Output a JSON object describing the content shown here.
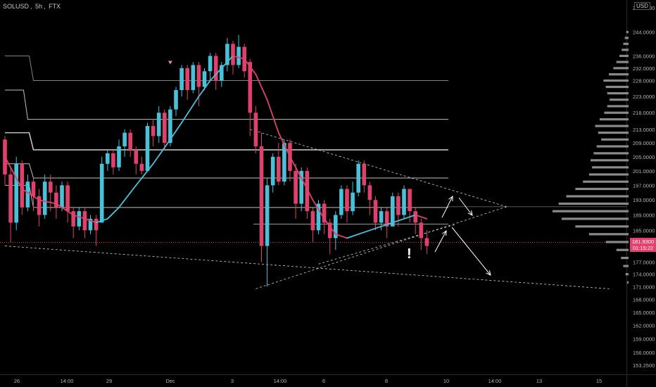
{
  "header": {
    "symbol": "SOLUSD",
    "interval": "5h",
    "exchange": "FTX",
    "separator": ", "
  },
  "currency_label": "USD",
  "last_price": {
    "value": "181.9300",
    "countdown": "01:15:22"
  },
  "warning_glyph": "!",
  "colors": {
    "background": "#000000",
    "up": "#49c1d8",
    "down": "#e0406e",
    "ma_up": "#49c1d8",
    "ma_down": "#e0406e",
    "levels": "#e0e0e0",
    "volume_profile": "#8a8a8a",
    "annotations": "#ffffff"
  },
  "chart_data": {
    "type": "bar",
    "symbol": "SOLUSD",
    "interval": "5h",
    "exchange": "FTX",
    "y_axis": {
      "scale": "log",
      "ticks": [
        "153.2500",
        "156.0000",
        "159.0000",
        "162.0000",
        "165.0000",
        "168.0000",
        "171.0000",
        "174.0000",
        "177.0000",
        "181.0000",
        "185.0000",
        "189.0000",
        "193.0000",
        "197.0000",
        "201.0000",
        "205.0000",
        "209.0000",
        "213.0000",
        "218.0000",
        "223.0000",
        "228.0000",
        "232.0000",
        "236.0000",
        "244.0000"
      ],
      "top_partial": "252.0000"
    },
    "x_axis": {
      "ticks": [
        "26",
        "14:00",
        "29",
        "Dec",
        "3",
        "14:00",
        "6",
        "8",
        "10",
        "14:00",
        "13",
        "15"
      ]
    },
    "last_price": 181.93,
    "candles": [
      {
        "o": 210,
        "c": 200,
        "l": 197,
        "h": 211
      },
      {
        "o": 200,
        "c": 187,
        "l": 182,
        "h": 202
      },
      {
        "o": 187,
        "c": 203,
        "l": 185,
        "h": 205
      },
      {
        "o": 203,
        "c": 191,
        "l": 189,
        "h": 204
      },
      {
        "o": 191,
        "c": 198,
        "l": 190,
        "h": 200
      },
      {
        "o": 198,
        "c": 194,
        "l": 190,
        "h": 199
      },
      {
        "o": 194,
        "c": 189,
        "l": 186,
        "h": 196
      },
      {
        "o": 189,
        "c": 198,
        "l": 188,
        "h": 200
      },
      {
        "o": 198,
        "c": 195,
        "l": 190,
        "h": 200
      },
      {
        "o": 195,
        "c": 191,
        "l": 188,
        "h": 197
      },
      {
        "o": 191,
        "c": 197,
        "l": 190,
        "h": 198
      },
      {
        "o": 197,
        "c": 190,
        "l": 187,
        "h": 198
      },
      {
        "o": 190,
        "c": 186,
        "l": 183,
        "h": 191
      },
      {
        "o": 186,
        "c": 190,
        "l": 185,
        "h": 191
      },
      {
        "o": 190,
        "c": 185,
        "l": 183,
        "h": 191
      },
      {
        "o": 185,
        "c": 188,
        "l": 184,
        "h": 189
      },
      {
        "o": 188,
        "c": 185,
        "l": 181,
        "h": 189
      },
      {
        "o": 187,
        "c": 203,
        "l": 187,
        "h": 205
      },
      {
        "o": 203,
        "c": 206,
        "l": 201,
        "h": 207
      },
      {
        "o": 206,
        "c": 202,
        "l": 200,
        "h": 207
      },
      {
        "o": 202,
        "c": 208,
        "l": 201,
        "h": 210
      },
      {
        "o": 208,
        "c": 212,
        "l": 205,
        "h": 213
      },
      {
        "o": 212,
        "c": 207,
        "l": 205,
        "h": 213
      },
      {
        "o": 207,
        "c": 203,
        "l": 200,
        "h": 208
      },
      {
        "o": 203,
        "c": 201,
        "l": 200,
        "h": 205
      },
      {
        "o": 201,
        "c": 214,
        "l": 201,
        "h": 215
      },
      {
        "o": 214,
        "c": 211,
        "l": 208,
        "h": 216
      },
      {
        "o": 211,
        "c": 218,
        "l": 209,
        "h": 220
      },
      {
        "o": 218,
        "c": 209,
        "l": 207,
        "h": 219
      },
      {
        "o": 209,
        "c": 219,
        "l": 208,
        "h": 220
      },
      {
        "o": 219,
        "c": 225,
        "l": 217,
        "h": 226
      },
      {
        "o": 225,
        "c": 232,
        "l": 223,
        "h": 233
      },
      {
        "o": 232,
        "c": 225,
        "l": 222,
        "h": 233
      },
      {
        "o": 225,
        "c": 233,
        "l": 224,
        "h": 234
      },
      {
        "o": 233,
        "c": 226,
        "l": 220,
        "h": 234
      },
      {
        "o": 226,
        "c": 231,
        "l": 225,
        "h": 232
      },
      {
        "o": 231,
        "c": 236,
        "l": 228,
        "h": 237
      },
      {
        "o": 236,
        "c": 228,
        "l": 225,
        "h": 237
      },
      {
        "o": 228,
        "c": 233,
        "l": 226,
        "h": 234
      },
      {
        "o": 233,
        "c": 240,
        "l": 231,
        "h": 242
      },
      {
        "o": 240,
        "c": 233,
        "l": 230,
        "h": 241
      },
      {
        "o": 233,
        "c": 239,
        "l": 232,
        "h": 243
      },
      {
        "o": 239,
        "c": 231,
        "l": 229,
        "h": 240
      },
      {
        "o": 234,
        "c": 218,
        "l": 211,
        "h": 235
      },
      {
        "o": 218,
        "c": 208,
        "l": 206,
        "h": 220
      },
      {
        "o": 208,
        "c": 181,
        "l": 177,
        "h": 212
      },
      {
        "o": 181,
        "c": 197,
        "l": 171,
        "h": 199
      },
      {
        "o": 197,
        "c": 205,
        "l": 195,
        "h": 206
      },
      {
        "o": 205,
        "c": 198,
        "l": 197,
        "h": 209
      },
      {
        "o": 198,
        "c": 209,
        "l": 197,
        "h": 210
      },
      {
        "o": 209,
        "c": 201,
        "l": 198,
        "h": 210
      },
      {
        "o": 201,
        "c": 192,
        "l": 188,
        "h": 203
      },
      {
        "o": 192,
        "c": 201,
        "l": 190,
        "h": 202
      },
      {
        "o": 201,
        "c": 190,
        "l": 188,
        "h": 202
      },
      {
        "o": 190,
        "c": 185,
        "l": 182,
        "h": 191
      },
      {
        "o": 185,
        "c": 192,
        "l": 184,
        "h": 193
      },
      {
        "o": 192,
        "c": 187,
        "l": 184,
        "h": 193
      },
      {
        "o": 187,
        "c": 183,
        "l": 179,
        "h": 188
      },
      {
        "o": 183,
        "c": 189,
        "l": 180,
        "h": 190
      },
      {
        "o": 189,
        "c": 196,
        "l": 188,
        "h": 197
      },
      {
        "o": 196,
        "c": 190,
        "l": 187,
        "h": 197
      },
      {
        "o": 190,
        "c": 195,
        "l": 189,
        "h": 198
      },
      {
        "o": 195,
        "c": 203,
        "l": 194,
        "h": 204
      },
      {
        "o": 203,
        "c": 197,
        "l": 195,
        "h": 204
      },
      {
        "o": 197,
        "c": 193,
        "l": 189,
        "h": 198
      },
      {
        "o": 193,
        "c": 187,
        "l": 185,
        "h": 194
      },
      {
        "o": 187,
        "c": 190,
        "l": 185,
        "h": 191
      },
      {
        "o": 190,
        "c": 186,
        "l": 183,
        "h": 191
      },
      {
        "o": 186,
        "c": 194,
        "l": 186,
        "h": 195
      },
      {
        "o": 194,
        "c": 189,
        "l": 186,
        "h": 195
      },
      {
        "o": 189,
        "c": 196,
        "l": 188,
        "h": 197
      },
      {
        "o": 196,
        "c": 190,
        "l": 187,
        "h": 196
      },
      {
        "o": 190,
        "c": 187,
        "l": 184,
        "h": 191
      },
      {
        "o": 187,
        "c": 183,
        "l": 180,
        "h": 188
      },
      {
        "o": 183,
        "c": 181,
        "l": 179,
        "h": 185
      }
    ],
    "moving_average": [
      {
        "i": 0,
        "v": 205
      },
      {
        "i": 3,
        "v": 196
      },
      {
        "i": 6,
        "v": 193
      },
      {
        "i": 9,
        "v": 192
      },
      {
        "i": 12,
        "v": 189
      },
      {
        "i": 14,
        "v": 188
      },
      {
        "i": 16,
        "v": 187
      },
      {
        "i": 18,
        "v": 188
      },
      {
        "i": 20,
        "v": 191
      },
      {
        "i": 23,
        "v": 197
      },
      {
        "i": 26,
        "v": 203
      },
      {
        "i": 29,
        "v": 210
      },
      {
        "i": 31,
        "v": 215
      },
      {
        "i": 34,
        "v": 223
      },
      {
        "i": 36,
        "v": 228
      },
      {
        "i": 38,
        "v": 232
      },
      {
        "i": 40,
        "v": 236
      },
      {
        "i": 42,
        "v": 235
      },
      {
        "i": 44,
        "v": 230
      },
      {
        "i": 46,
        "v": 222
      },
      {
        "i": 48,
        "v": 212
      },
      {
        "i": 50,
        "v": 205
      },
      {
        "i": 52,
        "v": 199
      },
      {
        "i": 54,
        "v": 193
      },
      {
        "i": 56,
        "v": 188
      },
      {
        "i": 58,
        "v": 184
      },
      {
        "i": 60,
        "v": 183
      },
      {
        "i": 62,
        "v": 184
      },
      {
        "i": 64,
        "v": 185
      },
      {
        "i": 66,
        "v": 186
      },
      {
        "i": 68,
        "v": 187
      },
      {
        "i": 70,
        "v": 188
      },
      {
        "i": 72,
        "v": 189
      },
      {
        "i": 74,
        "v": 188
      }
    ],
    "level_lines": [
      {
        "price": 228,
        "from_bar": 0,
        "steps": [
          {
            "i": 0,
            "v": 236
          },
          {
            "i": 5,
            "v": 228
          }
        ]
      },
      {
        "price": 216,
        "from_bar": 0,
        "steps": [
          {
            "i": 0,
            "v": 225
          },
          {
            "i": 4,
            "v": 216
          },
          {
            "i": 42,
            "v": 216
          }
        ]
      },
      {
        "price": 207,
        "from_bar": 0,
        "steps": [
          {
            "i": 0,
            "v": 212
          },
          {
            "i": 5,
            "v": 207
          },
          {
            "i": 42,
            "v": 207
          }
        ]
      },
      {
        "price": 199,
        "from_bar": 0,
        "steps": [
          {
            "i": 0,
            "v": 203
          },
          {
            "i": 5,
            "v": 199
          },
          {
            "i": 42,
            "v": 199
          }
        ]
      },
      {
        "price": 191,
        "from_bar": 0,
        "steps": [
          {
            "i": 0,
            "v": 197
          },
          {
            "i": 5,
            "v": 191
          },
          {
            "i": 42,
            "v": 191
          }
        ]
      }
    ],
    "volume_profile": [
      {
        "p": 244,
        "w": 3
      },
      {
        "p": 242,
        "w": 5
      },
      {
        "p": 240,
        "w": 7
      },
      {
        "p": 238,
        "w": 9
      },
      {
        "p": 236,
        "w": 12
      },
      {
        "p": 234,
        "w": 16
      },
      {
        "p": 232,
        "w": 20
      },
      {
        "p": 230,
        "w": 26
      },
      {
        "p": 228,
        "w": 33
      },
      {
        "p": 226,
        "w": 30
      },
      {
        "p": 224,
        "w": 28
      },
      {
        "p": 222,
        "w": 25
      },
      {
        "p": 220,
        "w": 28
      },
      {
        "p": 218,
        "w": 32
      },
      {
        "p": 216,
        "w": 38
      },
      {
        "p": 214,
        "w": 44
      },
      {
        "p": 212,
        "w": 40
      },
      {
        "p": 210,
        "w": 36
      },
      {
        "p": 208,
        "w": 42
      },
      {
        "p": 206,
        "w": 46
      },
      {
        "p": 204,
        "w": 50
      },
      {
        "p": 202,
        "w": 48
      },
      {
        "p": 200,
        "w": 52
      },
      {
        "p": 198,
        "w": 60
      },
      {
        "p": 196,
        "w": 70
      },
      {
        "p": 194,
        "w": 82
      },
      {
        "p": 192,
        "w": 92
      },
      {
        "p": 190,
        "w": 100
      },
      {
        "p": 188,
        "w": 88
      },
      {
        "p": 186,
        "w": 70
      },
      {
        "p": 184,
        "w": 52
      },
      {
        "p": 182,
        "w": 30
      },
      {
        "p": 180,
        "w": 16
      },
      {
        "p": 178,
        "w": 10
      },
      {
        "p": 176,
        "w": 7
      },
      {
        "p": 174,
        "w": 4
      },
      {
        "p": 172,
        "w": 2
      }
    ]
  }
}
